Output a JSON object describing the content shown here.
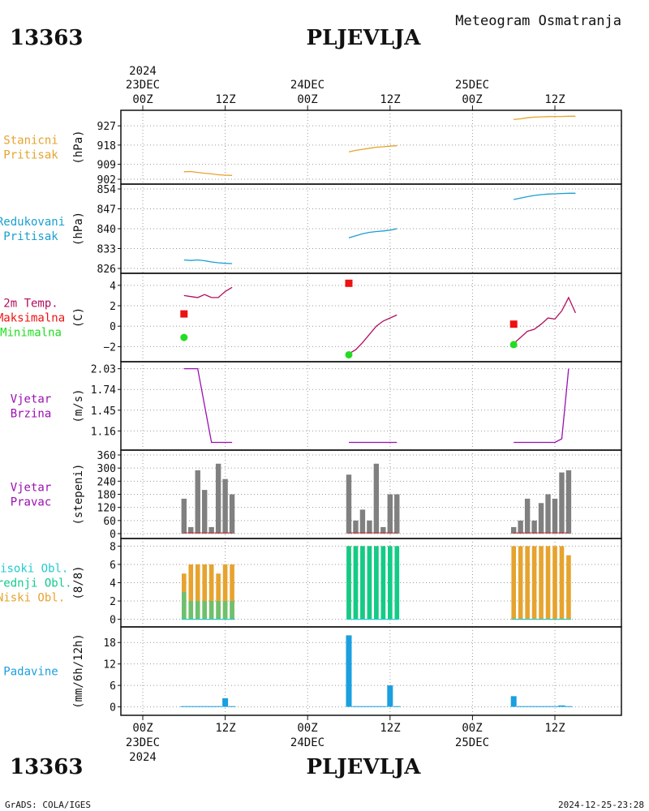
{
  "header": {
    "station_id": "13363",
    "station_name": "PLJEVLJA",
    "chart_title": "Meteogram Osmatranja",
    "footer_left": "GrADS: COLA/IGES",
    "footer_right": "2024-12-25-23:28"
  },
  "colors": {
    "pressure_station": "#e6a32e",
    "pressure_reduced": "#1a9fcf",
    "temp_line": "#b0105e",
    "temp_max": "#ee1111",
    "temp_min": "#22dd22",
    "wind_speed": "#9a10b0",
    "wind_dir": "#808080",
    "wind_dir_base": "#cc3333",
    "cloud_high": "#22cccc",
    "cloud_mid": "#11cc88",
    "cloud_low": "#e6a32e",
    "cloud_low_green": "#6ec06e",
    "precip": "#1a9fe0",
    "grid": "#999999"
  },
  "chart_data": {
    "type": "line",
    "time_axis": {
      "start": "2024-12-23T00Z",
      "end": "2024-12-25T22Z",
      "top_year": "2024",
      "top_dates": [
        "23DEC",
        "24DEC",
        "25DEC"
      ],
      "tick_labels": [
        "00Z",
        "12Z",
        "00Z",
        "12Z",
        "00Z",
        "12Z"
      ],
      "bottom_dates": [
        "23DEC",
        "24DEC",
        "25DEC"
      ],
      "bottom_year": "2024"
    },
    "panels": [
      {
        "key": "station_pressure",
        "label_lines": [
          "Stanicni",
          "Pritisak"
        ],
        "unit": "(hPa)",
        "ylim": [
          902,
          932
        ],
        "yticks": [
          927,
          918,
          909,
          902
        ],
        "ytick_labels": [
          "927",
          "918",
          "909",
          "902"
        ],
        "series": [
          {
            "x": [
              6,
              7,
              8,
              9,
              10,
              11,
              12,
              13
            ],
            "y": [
              905.5,
              905.6,
              905.2,
              904.8,
              904.5,
              904.1,
              903.9,
              903.8
            ]
          },
          {
            "x": [
              30,
              31,
              32,
              33,
              34,
              35,
              36,
              37
            ],
            "y": [
              914.8,
              915.5,
              916.0,
              916.5,
              917.0,
              917.2,
              917.5,
              917.7
            ]
          },
          {
            "x": [
              54,
              55,
              56,
              57,
              58,
              59,
              60,
              61,
              62,
              63
            ],
            "y": [
              930.0,
              930.3,
              930.8,
              931.1,
              931.2,
              931.3,
              931.4,
              931.4,
              931.5,
              931.5
            ]
          }
        ]
      },
      {
        "key": "reduced_pressure",
        "label_lines": [
          "Redukovani",
          "Pritisak"
        ],
        "unit": "(hPa)",
        "ylim": [
          826,
          854
        ],
        "yticks": [
          854,
          847,
          840,
          833,
          826
        ],
        "ytick_labels": [
          "854",
          "847",
          "840",
          "833",
          "826"
        ],
        "series": [
          {
            "x": [
              6,
              7,
              8,
              9,
              10,
              11,
              12,
              13
            ],
            "y": [
              829.0,
              828.8,
              829.0,
              828.7,
              828.3,
              828.0,
              827.8,
              827.7
            ]
          },
          {
            "x": [
              30,
              31,
              32,
              33,
              34,
              35,
              36,
              37
            ],
            "y": [
              836.8,
              837.5,
              838.2,
              838.7,
              839.0,
              839.2,
              839.5,
              840.0
            ]
          },
          {
            "x": [
              54,
              55,
              56,
              57,
              58,
              59,
              60,
              61,
              62,
              63
            ],
            "y": [
              850.3,
              850.8,
              851.3,
              851.7,
              852.0,
              852.2,
              852.3,
              852.4,
              852.5,
              852.5
            ]
          }
        ]
      },
      {
        "key": "temperature",
        "label_lines": [
          "2m Temp.",
          "Maksimalna",
          "Minimalna"
        ],
        "unit": "(C)",
        "ylim": [
          -3,
          4.7
        ],
        "yticks": [
          4,
          2,
          0,
          -2
        ],
        "ytick_labels": [
          "4",
          "2",
          "0",
          "−2"
        ],
        "series": [
          {
            "x": [
              6,
              7,
              8,
              9,
              10,
              11,
              12,
              13
            ],
            "y": [
              3.0,
              2.9,
              2.8,
              3.1,
              2.8,
              2.8,
              3.4,
              3.8
            ]
          },
          {
            "x": [
              30,
              31,
              32,
              33,
              34,
              35,
              36,
              37
            ],
            "y": [
              -2.7,
              -2.3,
              -1.6,
              -0.8,
              0.0,
              0.5,
              0.8,
              1.1
            ]
          },
          {
            "x": [
              54,
              55,
              56,
              57,
              58,
              59,
              60,
              61,
              62,
              63
            ],
            "y": [
              -1.7,
              -1.1,
              -0.5,
              -0.3,
              0.2,
              0.8,
              0.7,
              1.5,
              2.8,
              1.3
            ]
          }
        ],
        "max_points": [
          {
            "x": 6,
            "y": 1.2
          },
          {
            "x": 30,
            "y": 4.2
          },
          {
            "x": 54,
            "y": 0.2
          }
        ],
        "min_points": [
          {
            "x": 6,
            "y": -1.1
          },
          {
            "x": 30,
            "y": -2.8
          },
          {
            "x": 54,
            "y": -1.8
          }
        ]
      },
      {
        "key": "wind_speed",
        "label_lines": [
          "Vjetar",
          "Brzina"
        ],
        "unit": "(m/s)",
        "ylim": [
          0.96,
          2.06
        ],
        "yticks": [
          2.03,
          1.74,
          1.45,
          1.16
        ],
        "ytick_labels": [
          "2.03",
          "1.74",
          "1.45",
          "1.16"
        ],
        "series": [
          {
            "x": [
              6,
              8,
              10,
              13
            ],
            "y": [
              2.03,
              2.03,
              1.0,
              1.0
            ]
          },
          {
            "x": [
              30,
              37
            ],
            "y": [
              1.0,
              1.0
            ]
          },
          {
            "x": [
              54,
              60,
              61,
              62
            ],
            "y": [
              1.0,
              1.0,
              1.05,
              2.03
            ]
          }
        ]
      },
      {
        "key": "wind_direction",
        "label_lines": [
          "Vjetar",
          "Pravac"
        ],
        "unit": "(stepeni)",
        "ylim": [
          0,
          360
        ],
        "yticks": [
          360,
          300,
          240,
          180,
          120,
          60,
          0
        ],
        "ytick_labels": [
          "360",
          "300",
          "240",
          "180",
          "120",
          "60",
          "0"
        ],
        "bars": [
          {
            "x": [
              6,
              7,
              8,
              9,
              10,
              11,
              12,
              13
            ],
            "y": [
              160,
              30,
              290,
              200,
              30,
              320,
              250,
              180
            ]
          },
          {
            "x": [
              30,
              31,
              32,
              33,
              34,
              35,
              36,
              37
            ],
            "y": [
              270,
              60,
              110,
              60,
              320,
              30,
              180,
              180
            ]
          },
          {
            "x": [
              54,
              55,
              56,
              57,
              58,
              59,
              60,
              61,
              62
            ],
            "y": [
              30,
              60,
              160,
              60,
              140,
              180,
              160,
              280,
              290
            ]
          }
        ]
      },
      {
        "key": "clouds",
        "label_lines": [
          "Visoki Obl.",
          "Srednji Obl.",
          "Niski Obl."
        ],
        "unit": "(8/8)",
        "ylim": [
          -0.3,
          8.3
        ],
        "yticks": [
          8,
          6,
          4,
          2,
          0
        ],
        "ytick_labels": [
          "8",
          "6",
          "4",
          "2",
          "0"
        ],
        "low": [
          {
            "x": [
              6,
              7,
              8,
              9,
              10,
              11,
              12,
              13
            ],
            "y": [
              5,
              6,
              6,
              6,
              6,
              5,
              6,
              6
            ]
          },
          {
            "x": [
              30,
              31,
              32,
              33,
              34,
              35,
              36,
              37
            ],
            "y": [
              8,
              8,
              8,
              8,
              8,
              8,
              8,
              8
            ]
          },
          {
            "x": [
              54,
              55,
              56,
              57,
              58,
              59,
              60,
              61,
              62
            ],
            "y": [
              8,
              8,
              8,
              8,
              8,
              8,
              8,
              8,
              7
            ]
          }
        ],
        "mid": [
          {
            "x": [
              6,
              7,
              8,
              9,
              10,
              11,
              12,
              13
            ],
            "y": [
              3,
              2,
              2,
              2,
              2,
              2,
              2,
              2
            ]
          },
          {
            "x": [
              30,
              31,
              32,
              33,
              34,
              35,
              36,
              37
            ],
            "y": [
              8,
              8,
              8,
              8,
              8,
              8,
              8,
              8
            ]
          },
          {
            "x": [
              54,
              55,
              56,
              57,
              58,
              59,
              60,
              61,
              62
            ],
            "y": [
              0,
              0,
              0,
              0,
              0,
              0,
              0,
              0,
              0
            ]
          }
        ]
      },
      {
        "key": "precipitation",
        "label_lines": [
          "Padavine"
        ],
        "unit": "(mm/6h/12h)",
        "ylim": [
          -1,
          21
        ],
        "yticks": [
          18,
          12,
          6,
          0
        ],
        "ytick_labels": [
          "18",
          "12",
          "6",
          "0"
        ],
        "bars": [
          {
            "x": [
              6,
              7,
              8,
              9,
              10,
              11,
              12,
              13
            ],
            "y": [
              0.2,
              0.2,
              0.2,
              0.2,
              0.2,
              0.2,
              2.4,
              0.2
            ]
          },
          {
            "x": [
              30,
              31,
              32,
              33,
              34,
              35,
              36,
              37
            ],
            "y": [
              20,
              0.2,
              0.2,
              0.2,
              0.2,
              0.2,
              6.0,
              0.2
            ]
          },
          {
            "x": [
              54,
              55,
              56,
              57,
              58,
              59,
              60,
              61,
              62
            ],
            "y": [
              3.0,
              0.2,
              0.2,
              0.2,
              0.2,
              0.2,
              0.2,
              0.4,
              0.2
            ]
          }
        ]
      }
    ]
  }
}
